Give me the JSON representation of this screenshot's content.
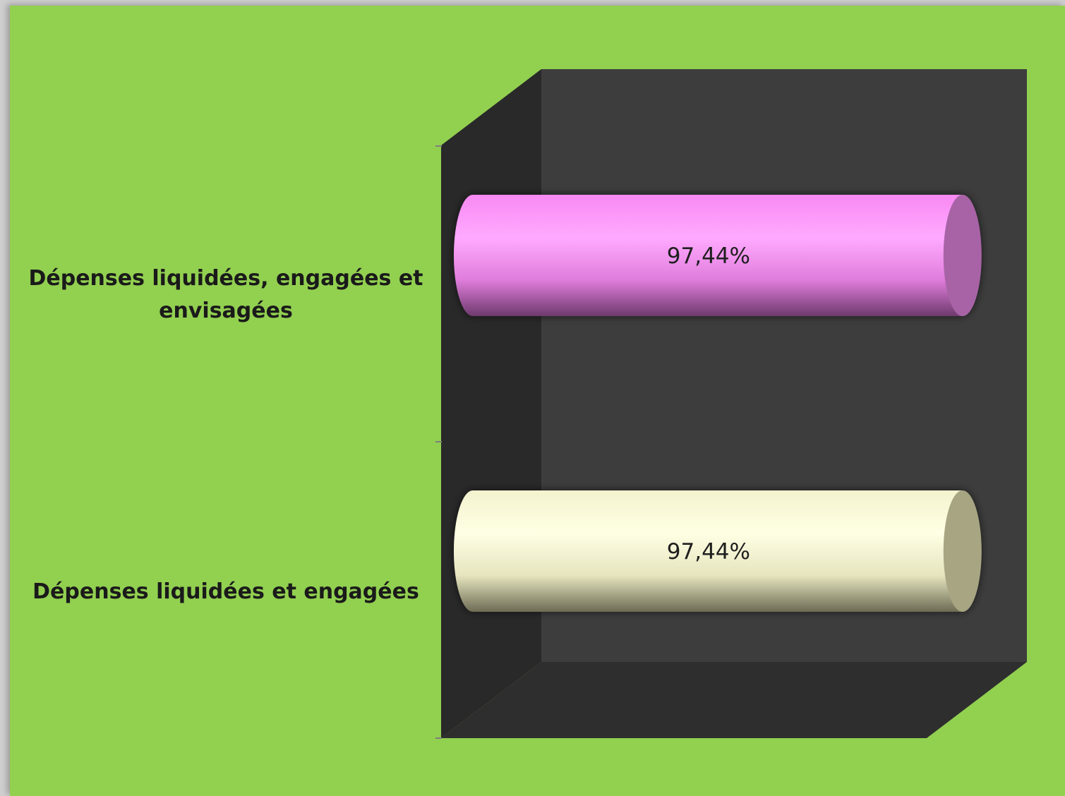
{
  "chart_data": {
    "type": "bar",
    "orientation": "horizontal",
    "style": "3d-cylinder",
    "categories": [
      "Dépenses liquidées, engagées et envisagées",
      "Dépenses liquidées et engagées"
    ],
    "values": [
      97.44,
      97.44
    ],
    "data_labels": [
      "97,44%",
      "97,44%"
    ],
    "bar_colors": [
      "#ff9cfb",
      "#ffffdd"
    ],
    "bar_end_colors": [
      "#a864a6",
      "#a7a582"
    ],
    "xlim": [
      0,
      100
    ],
    "title": "",
    "xlabel": "",
    "ylabel": "",
    "grid": false,
    "legend": "none",
    "background_color": "#92d050",
    "plot_back_wall_color": "#3d3d3d",
    "plot_side_wall_color": "#292929",
    "plot_floor_color": "#2e2e2e"
  }
}
